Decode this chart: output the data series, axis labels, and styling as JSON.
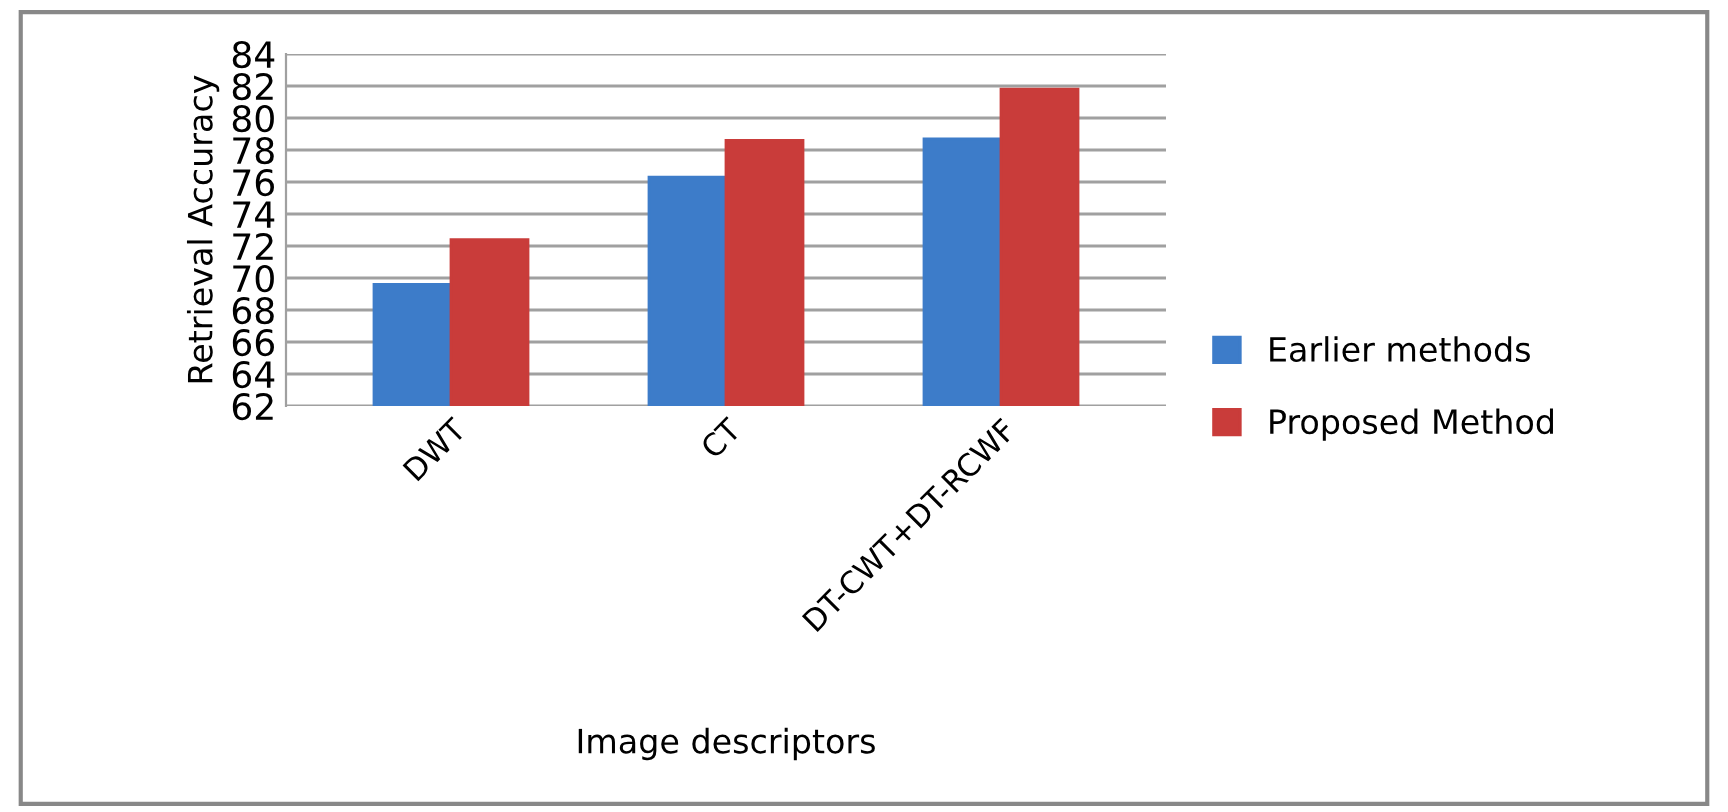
{
  "chart_data": {
    "type": "bar",
    "xlabel": "Image descriptors",
    "ylabel": "Retrieval Accuracy",
    "categories": [
      "DWT",
      "CT",
      "DT-CWT+DT-RCWF"
    ],
    "series": [
      {
        "name": "Earlier methods",
        "color": "#3d7cc9",
        "values": [
          69.6,
          76.3,
          78.7
        ]
      },
      {
        "name": "Proposed Method",
        "color": "#c93c3a",
        "values": [
          72.4,
          78.6,
          81.8
        ]
      }
    ],
    "ylim": [
      62,
      84
    ],
    "yticks": [
      62,
      64,
      66,
      68,
      70,
      72,
      74,
      76,
      78,
      80,
      82,
      84
    ],
    "grid": "y",
    "legend": "right"
  }
}
